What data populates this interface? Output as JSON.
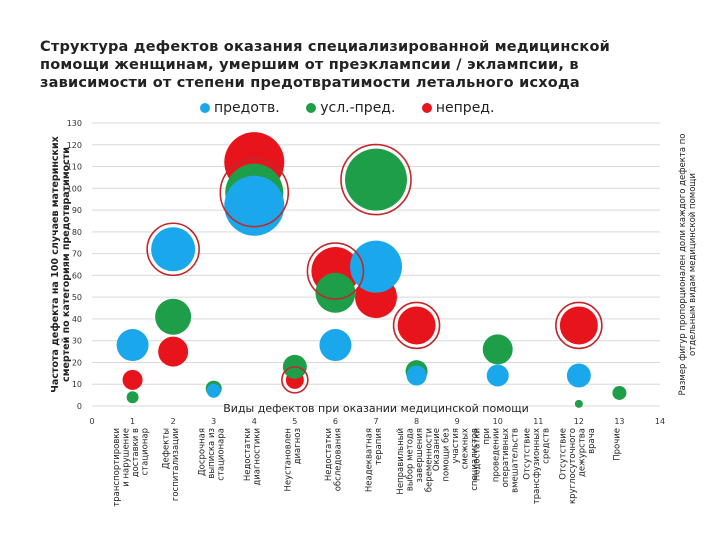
{
  "title": "Структура дефектов оказания специализированной медицинской помощи женщинам, умершим от преэклампсии / эклампсии, в зависимости от степени предотвратимости летального исхода",
  "colors": {
    "prevent": "#1aa7ec",
    "conditional": "#1f9e4a",
    "nonprevent": "#e8141c",
    "ring": "#c0282c"
  },
  "chart_data": {
    "type": "bubble",
    "legend": [
      "предотв.",
      "усл.-пред.",
      "непред."
    ],
    "xlim": [
      0,
      14
    ],
    "ylim": [
      0,
      130
    ],
    "yticks": [
      0,
      10,
      20,
      30,
      40,
      50,
      60,
      70,
      80,
      90,
      100,
      110,
      120,
      130
    ],
    "xticks": [
      0,
      1,
      2,
      3,
      4,
      5,
      6,
      7,
      8,
      9,
      10,
      11,
      12,
      13,
      14
    ],
    "xlabel": "Виды дефектов при оказании медицинской помощи",
    "ylabel": "Частота дефекта на 100 случаев материнских смертей по категориям предотвратимости",
    "right_label": "Размер фигур пропорционален доли каждого дефекта по отдельным видам медицинской помощи",
    "categories": [
      "транспортировки и нарушение доставки в стационар",
      "Дефекты госпитализации",
      "Досрочная выписка из стационара",
      "Недостатки диагностики",
      "Неустановлен диагноз",
      "Недостатки обследования",
      "Неадекватная терапия",
      "Неправильный выбор метода завершения беременности",
      "Оказание помощи без участия смежных специалистов",
      "Недостатки при проведении оперативных вмешательств",
      "Отсутствие трансфузионных средств",
      "Отсутствие круглосуточного дежурства врача",
      "Прочие"
    ],
    "series": [
      {
        "name": "предотв.",
        "points": [
          {
            "x": 1,
            "y": 28,
            "size": 16
          },
          {
            "x": 2,
            "y": 72,
            "size": 22
          },
          {
            "x": 3,
            "y": 7,
            "size": 7
          },
          {
            "x": 4,
            "y": 92,
            "size": 30
          },
          {
            "x": 6,
            "y": 28,
            "size": 16
          },
          {
            "x": 7,
            "y": 64,
            "size": 26
          },
          {
            "x": 8,
            "y": 14,
            "size": 10
          },
          {
            "x": 10,
            "y": 14,
            "size": 11
          },
          {
            "x": 12,
            "y": 14,
            "size": 12
          }
        ]
      },
      {
        "name": "усл.-пред.",
        "points": [
          {
            "x": 1,
            "y": 4,
            "size": 6
          },
          {
            "x": 2,
            "y": 41,
            "size": 18
          },
          {
            "x": 3,
            "y": 8,
            "size": 8
          },
          {
            "x": 4,
            "y": 98,
            "size": 29
          },
          {
            "x": 5,
            "y": 18,
            "size": 12
          },
          {
            "x": 6,
            "y": 52,
            "size": 20
          },
          {
            "x": 7,
            "y": 104,
            "size": 31
          },
          {
            "x": 8,
            "y": 16,
            "size": 11
          },
          {
            "x": 10,
            "y": 26,
            "size": 15
          },
          {
            "x": 12,
            "y": 1,
            "size": 4
          },
          {
            "x": 13,
            "y": 6,
            "size": 7
          }
        ]
      },
      {
        "name": "непред.",
        "points": [
          {
            "x": 1,
            "y": 12,
            "size": 10
          },
          {
            "x": 2,
            "y": 25,
            "size": 15
          },
          {
            "x": 4,
            "y": 112,
            "size": 30
          },
          {
            "x": 5,
            "y": 12,
            "size": 9
          },
          {
            "x": 6,
            "y": 62,
            "size": 24
          },
          {
            "x": 7,
            "y": 50,
            "size": 21
          },
          {
            "x": 8,
            "y": 37,
            "size": 19
          },
          {
            "x": 12,
            "y": 37,
            "size": 19
          }
        ]
      }
    ],
    "highlighted": [
      {
        "x": 2,
        "y": 72
      },
      {
        "x": 4,
        "y": 105
      },
      {
        "x": 6,
        "y": 62
      },
      {
        "x": 7,
        "y": 105
      },
      {
        "x": 8,
        "y": 37
      },
      {
        "x": 12,
        "y": 37
      },
      {
        "x": 5,
        "y": 12
      }
    ]
  }
}
